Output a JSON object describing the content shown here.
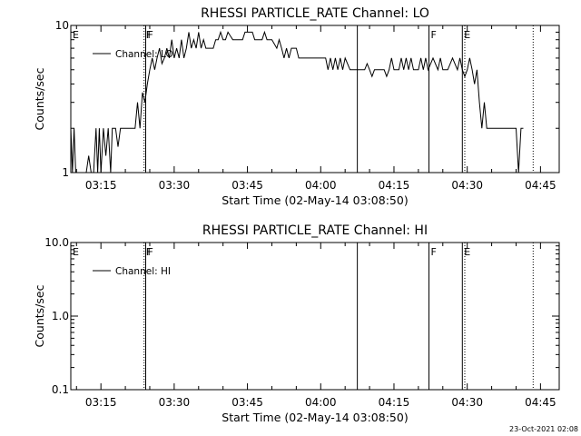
{
  "chart_data": [
    {
      "type": "line",
      "title": "RHESSI PARTICLE_RATE Channel: LO",
      "xlabel": "Start Time (02-May-14 03:08:50)",
      "ylabel": "Counts/sec",
      "y_scale": "log",
      "ylim": [
        1,
        10
      ],
      "xlim": [
        "03:08:50",
        "04:48:50"
      ],
      "x_ticks": [
        "03:15",
        "03:30",
        "03:45",
        "04:00",
        "04:15",
        "04:30",
        "04:45"
      ],
      "y_ticks": [
        "1",
        "10"
      ],
      "legend": {
        "label": "Channel: LO",
        "placement": "top-left"
      },
      "markers": [
        {
          "label": "E",
          "time": "03:08:50",
          "style": "solid"
        },
        {
          "label": "F",
          "time": "03:23:50",
          "style": "dotted"
        },
        {
          "label": "F",
          "time": "03:24:10",
          "style": "solid"
        },
        {
          "label": "",
          "time": "04:07:30",
          "style": "solid"
        },
        {
          "label": "F",
          "time": "04:22:10",
          "style": "solid"
        },
        {
          "label": "E",
          "time": "04:29:00",
          "style": "solid"
        },
        {
          "label": "",
          "time": "04:29:30",
          "style": "dotted"
        },
        {
          "label": "",
          "time": "04:43:30",
          "style": "dotted"
        }
      ],
      "series": [
        {
          "values": [
            [
              "03:08:50",
              2.0
            ],
            [
              "03:09:10",
              1.0
            ],
            [
              "03:09:30",
              2.0
            ],
            [
              "03:09:50",
              1.0
            ],
            [
              "03:12:00",
              1.0
            ],
            [
              "03:12:30",
              1.3
            ],
            [
              "03:13:00",
              1.0
            ],
            [
              "03:13:30",
              1.0
            ],
            [
              "03:14:00",
              2.0
            ],
            [
              "03:14:20",
              1.0
            ],
            [
              "03:14:40",
              2.0
            ],
            [
              "03:15:00",
              1.0
            ],
            [
              "03:15:30",
              2.0
            ],
            [
              "03:16:00",
              1.3
            ],
            [
              "03:16:30",
              2.0
            ],
            [
              "03:17:00",
              1.0
            ],
            [
              "03:17:20",
              2.0
            ],
            [
              "03:18:00",
              2.0
            ],
            [
              "03:18:30",
              1.5
            ],
            [
              "03:19:00",
              2.0
            ],
            [
              "03:20:00",
              2.0
            ],
            [
              "03:21:00",
              2.0
            ],
            [
              "03:22:00",
              2.0
            ],
            [
              "03:22:30",
              3.0
            ],
            [
              "03:23:00",
              2.0
            ],
            [
              "03:23:30",
              3.5
            ],
            [
              "03:24:00",
              3.0
            ],
            [
              "03:24:30",
              4.0
            ],
            [
              "03:25:00",
              5.0
            ],
            [
              "03:25:30",
              6.0
            ],
            [
              "03:26:00",
              5.0
            ],
            [
              "03:26:30",
              6.0
            ],
            [
              "03:27:00",
              7.0
            ],
            [
              "03:27:30",
              5.5
            ],
            [
              "03:28:00",
              6.0
            ],
            [
              "03:28:30",
              7.0
            ],
            [
              "03:29:00",
              6.0
            ],
            [
              "03:29:30",
              8.0
            ],
            [
              "03:30:00",
              6.0
            ],
            [
              "03:30:30",
              7.0
            ],
            [
              "03:31:00",
              6.0
            ],
            [
              "03:31:30",
              8.0
            ],
            [
              "03:32:00",
              6.0
            ],
            [
              "03:32:30",
              7.0
            ],
            [
              "03:33:00",
              9.0
            ],
            [
              "03:33:30",
              7.0
            ],
            [
              "03:34:00",
              8.0
            ],
            [
              "03:34:30",
              7.0
            ],
            [
              "03:35:00",
              9.0
            ],
            [
              "03:35:30",
              7.0
            ],
            [
              "03:36:00",
              8.0
            ],
            [
              "03:36:30",
              7.0
            ],
            [
              "03:37:00",
              7.0
            ],
            [
              "03:38:00",
              7.0
            ],
            [
              "03:38:30",
              8.0
            ],
            [
              "03:39:00",
              8.0
            ],
            [
              "03:39:30",
              9.0
            ],
            [
              "03:40:00",
              8.0
            ],
            [
              "03:40:30",
              8.0
            ],
            [
              "03:41:00",
              9.0
            ],
            [
              "03:42:00",
              8.0
            ],
            [
              "03:42:30",
              8.0
            ],
            [
              "03:43:00",
              8.0
            ],
            [
              "03:44:00",
              8.0
            ],
            [
              "03:44:30",
              9.0
            ],
            [
              "03:45:00",
              9.0
            ],
            [
              "03:46:00",
              9.0
            ],
            [
              "03:46:30",
              8.0
            ],
            [
              "03:47:00",
              8.0
            ],
            [
              "03:48:00",
              8.0
            ],
            [
              "03:48:30",
              9.0
            ],
            [
              "03:49:00",
              8.0
            ],
            [
              "03:50:00",
              8.0
            ],
            [
              "03:51:00",
              7.0
            ],
            [
              "03:51:30",
              8.0
            ],
            [
              "03:52:00",
              7.0
            ],
            [
              "03:52:30",
              6.0
            ],
            [
              "03:53:00",
              7.0
            ],
            [
              "03:53:30",
              6.0
            ],
            [
              "03:54:00",
              7.0
            ],
            [
              "03:55:00",
              7.0
            ],
            [
              "03:55:30",
              6.0
            ],
            [
              "03:56:00",
              6.0
            ],
            [
              "03:57:00",
              6.0
            ],
            [
              "03:58:00",
              6.0
            ],
            [
              "03:59:00",
              6.0
            ],
            [
              "04:00:00",
              6.0
            ],
            [
              "04:01:00",
              6.0
            ],
            [
              "04:01:30",
              5.0
            ],
            [
              "04:02:00",
              6.0
            ],
            [
              "04:02:30",
              5.0
            ],
            [
              "04:03:00",
              6.0
            ],
            [
              "04:03:30",
              5.0
            ],
            [
              "04:04:00",
              6.0
            ],
            [
              "04:04:30",
              5.0
            ],
            [
              "04:05:00",
              6.0
            ],
            [
              "04:06:00",
              5.0
            ],
            [
              "04:07:00",
              5.0
            ],
            [
              "04:08:00",
              5.0
            ],
            [
              "04:09:00",
              5.0
            ],
            [
              "04:09:30",
              5.5
            ],
            [
              "04:10:00",
              5.0
            ],
            [
              "04:10:30",
              4.5
            ],
            [
              "04:11:00",
              5.0
            ],
            [
              "04:12:00",
              5.0
            ],
            [
              "04:13:00",
              5.0
            ],
            [
              "04:13:30",
              4.5
            ],
            [
              "04:14:00",
              5.0
            ],
            [
              "04:14:30",
              6.0
            ],
            [
              "04:15:00",
              5.0
            ],
            [
              "04:16:00",
              5.0
            ],
            [
              "04:16:30",
              6.0
            ],
            [
              "04:17:00",
              5.0
            ],
            [
              "04:17:30",
              6.0
            ],
            [
              "04:18:00",
              5.0
            ],
            [
              "04:18:30",
              6.0
            ],
            [
              "04:19:00",
              5.0
            ],
            [
              "04:20:00",
              5.0
            ],
            [
              "04:20:30",
              6.0
            ],
            [
              "04:21:00",
              5.0
            ],
            [
              "04:21:30",
              6.0
            ],
            [
              "04:22:00",
              5.0
            ],
            [
              "04:23:00",
              6.0
            ],
            [
              "04:24:00",
              5.0
            ],
            [
              "04:24:30",
              6.0
            ],
            [
              "04:25:00",
              5.0
            ],
            [
              "04:26:00",
              5.0
            ],
            [
              "04:27:00",
              6.0
            ],
            [
              "04:28:00",
              5.0
            ],
            [
              "04:28:30",
              6.0
            ],
            [
              "04:29:00",
              5.0
            ],
            [
              "04:29:30",
              4.5
            ],
            [
              "04:30:00",
              5.0
            ],
            [
              "04:30:30",
              6.0
            ],
            [
              "04:31:00",
              5.0
            ],
            [
              "04:31:30",
              4.0
            ],
            [
              "04:32:00",
              5.0
            ],
            [
              "04:32:30",
              3.0
            ],
            [
              "04:33:00",
              2.0
            ],
            [
              "04:33:30",
              3.0
            ],
            [
              "04:34:00",
              2.0
            ],
            [
              "04:35:00",
              2.0
            ],
            [
              "04:36:00",
              2.0
            ],
            [
              "04:37:00",
              2.0
            ],
            [
              "04:38:00",
              2.0
            ],
            [
              "04:39:00",
              2.0
            ],
            [
              "04:40:00",
              2.0
            ],
            [
              "04:40:30",
              1.0
            ],
            [
              "04:41:00",
              2.0
            ],
            [
              "04:41:30",
              2.0
            ]
          ]
        }
      ]
    },
    {
      "type": "line",
      "title": "RHESSI PARTICLE_RATE Channel: HI",
      "xlabel": "Start Time (02-May-14 03:08:50)",
      "ylabel": "Counts/sec",
      "y_scale": "log",
      "ylim": [
        0.1,
        10.0
      ],
      "xlim": [
        "03:08:50",
        "04:48:50"
      ],
      "x_ticks": [
        "03:15",
        "03:30",
        "03:45",
        "04:00",
        "04:15",
        "04:30",
        "04:45"
      ],
      "y_ticks": [
        "0.1",
        "1.0",
        "10.0"
      ],
      "legend": {
        "label": "Channel: HI",
        "placement": "top-left"
      },
      "markers": [
        {
          "label": "E",
          "time": "03:08:50",
          "style": "solid"
        },
        {
          "label": "F",
          "time": "03:23:50",
          "style": "dotted"
        },
        {
          "label": "F",
          "time": "03:24:10",
          "style": "solid"
        },
        {
          "label": "",
          "time": "04:07:30",
          "style": "solid"
        },
        {
          "label": "F",
          "time": "04:22:10",
          "style": "solid"
        },
        {
          "label": "E",
          "time": "04:29:00",
          "style": "solid"
        },
        {
          "label": "",
          "time": "04:29:30",
          "style": "dotted"
        },
        {
          "label": "",
          "time": "04:43:30",
          "style": "dotted"
        }
      ],
      "series": [
        {
          "values": []
        }
      ]
    }
  ],
  "footer": {
    "timestamp": "23-Oct-2021 02:08"
  }
}
